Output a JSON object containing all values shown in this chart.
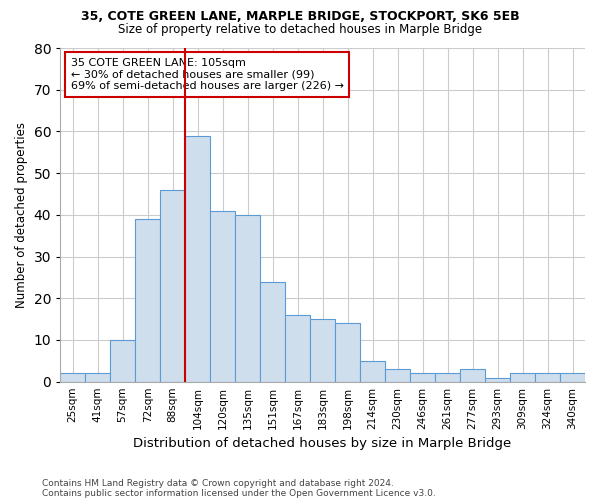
{
  "title1": "35, COTE GREEN LANE, MARPLE BRIDGE, STOCKPORT, SK6 5EB",
  "title2": "Size of property relative to detached houses in Marple Bridge",
  "xlabel": "Distribution of detached houses by size in Marple Bridge",
  "ylabel": "Number of detached properties",
  "footnote1": "Contains HM Land Registry data © Crown copyright and database right 2024.",
  "footnote2": "Contains public sector information licensed under the Open Government Licence v3.0.",
  "categories": [
    "25sqm",
    "41sqm",
    "57sqm",
    "72sqm",
    "88sqm",
    "104sqm",
    "120sqm",
    "135sqm",
    "151sqm",
    "167sqm",
    "183sqm",
    "198sqm",
    "214sqm",
    "230sqm",
    "246sqm",
    "261sqm",
    "277sqm",
    "293sqm",
    "309sqm",
    "324sqm",
    "340sqm"
  ],
  "values": [
    2,
    2,
    10,
    39,
    46,
    59,
    41,
    40,
    24,
    16,
    15,
    14,
    5,
    3,
    2,
    2,
    3,
    1,
    2,
    2,
    2
  ],
  "bar_color": "#cfdeed",
  "bar_edge_color": "#5b9bd5",
  "red_line_color": "#cc0000",
  "red_line_index": 5,
  "annotation_text": "35 COTE GREEN LANE: 105sqm\n← 30% of detached houses are smaller (99)\n69% of semi-detached houses are larger (226) →",
  "annotation_box_color": "#ffffff",
  "annotation_box_edge": "#cc0000",
  "ylim": [
    0,
    80
  ],
  "yticks": [
    0,
    10,
    20,
    30,
    40,
    50,
    60,
    70,
    80
  ],
  "background_color": "#ffffff",
  "grid_color": "#cccccc",
  "figsize": [
    6.0,
    5.0
  ],
  "dpi": 100
}
